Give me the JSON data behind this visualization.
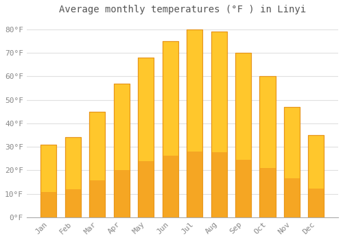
{
  "title": "Average monthly temperatures (°F ) in Linyi",
  "months": [
    "Jan",
    "Feb",
    "Mar",
    "Apr",
    "May",
    "Jun",
    "Jul",
    "Aug",
    "Sep",
    "Oct",
    "Nov",
    "Dec"
  ],
  "values": [
    31,
    34,
    45,
    57,
    68,
    75,
    80,
    79,
    70,
    60,
    47,
    35
  ],
  "bar_color_top": "#FFC72C",
  "bar_color_bottom": "#F5A623",
  "bar_edge_color": "#E8951A",
  "background_color": "#FFFFFF",
  "plot_bg_color": "#FFFFFF",
  "grid_color": "#E0E0E0",
  "yticks": [
    0,
    10,
    20,
    30,
    40,
    50,
    60,
    70,
    80
  ],
  "ylim": [
    0,
    84
  ],
  "ylabel_format": "°F",
  "title_fontsize": 10,
  "tick_fontsize": 8,
  "font_family": "monospace",
  "tick_color": "#888888",
  "title_color": "#555555"
}
